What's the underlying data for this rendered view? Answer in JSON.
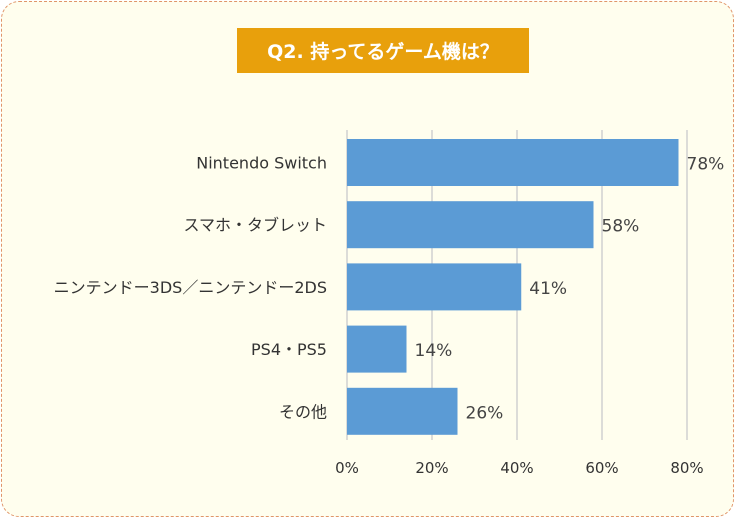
{
  "chart_data": {
    "type": "bar",
    "orientation": "horizontal",
    "title": "Q2. 持ってるゲーム機は？",
    "categories": [
      "Nintendo Switch",
      "スマホ・タブレット",
      "ニンテンドー3DS／ニンテンドー2DS",
      "PS4・PS5",
      "その他"
    ],
    "values": [
      78,
      58,
      41,
      14,
      26
    ],
    "data_labels": [
      "78%",
      "58%",
      "41%",
      "14%",
      "26%"
    ],
    "xlim": [
      0,
      80
    ],
    "xticks": [
      0,
      20,
      40,
      60,
      80
    ],
    "xtick_labels": [
      "0%",
      "20%",
      "40%",
      "60%",
      "80%"
    ],
    "xlabel": "",
    "ylabel": "",
    "grid": true,
    "bar_color": "#5B9BD5",
    "title_bg_color": "#E8A00C"
  }
}
